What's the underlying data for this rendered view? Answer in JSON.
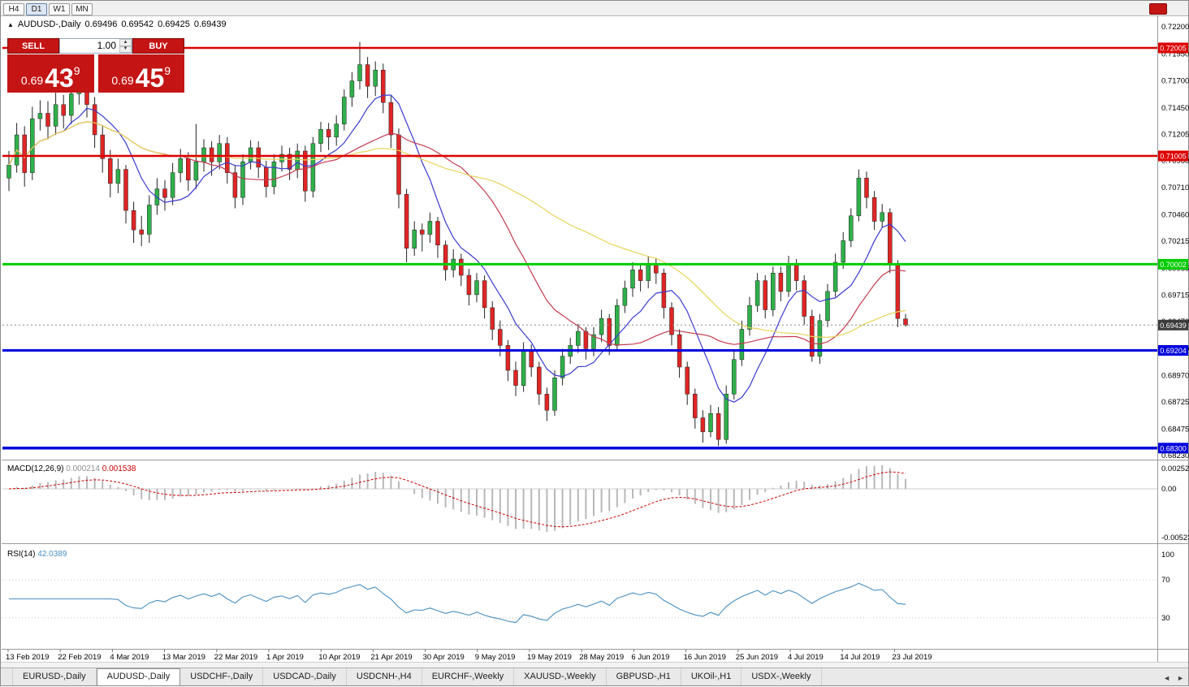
{
  "toolbar": {
    "timeframes": [
      {
        "label": "H4",
        "active": false
      },
      {
        "label": "D1",
        "active": true
      },
      {
        "label": "W1",
        "active": false
      },
      {
        "label": "MN",
        "active": false
      }
    ]
  },
  "chart_header": {
    "symbol_text": "AUDUSD-,Daily",
    "open": "0.69496",
    "high": "0.69542",
    "low": "0.69425",
    "close": "0.69439"
  },
  "trade_panel": {
    "sell_label": "SELL",
    "buy_label": "BUY",
    "volume": "1.00",
    "sell_price": {
      "prefix": "0.69",
      "big": "43",
      "sup": "9"
    },
    "buy_price": {
      "prefix": "0.69",
      "big": "45",
      "sup": "9"
    },
    "panel_color": "#c41414"
  },
  "levels": [
    {
      "price": 0.72005,
      "label": "0.72005",
      "color": "#dd0000",
      "width": 2.5
    },
    {
      "price": 0.71005,
      "label": "0.71005",
      "color": "#dd0000",
      "width": 2.5
    },
    {
      "price": 0.70002,
      "label": "0.70002",
      "color": "#00cc00",
      "width": 3
    },
    {
      "price": 0.69204,
      "label": "0.69204",
      "color": "#0000dd",
      "width": 3
    },
    {
      "price": 0.683,
      "label": "0.68300",
      "color": "#0000dd",
      "width": 3.5
    }
  ],
  "bid_line": {
    "price": 0.69439,
    "label": "0.69439",
    "tag_color": "#3c3c3c"
  },
  "price_axis": {
    "labels": [
      "0.72200",
      "0.71950",
      "0.71700",
      "0.71450",
      "0.71205",
      "0.70960",
      "0.70710",
      "0.70460",
      "0.70215",
      "0.69965",
      "0.69715",
      "0.69470",
      "0.69220",
      "0.68970",
      "0.68725",
      "0.68475",
      "0.68230"
    ]
  },
  "chart_data": {
    "type": "candlestick",
    "title": "AUDUSD-,Daily",
    "symbol": "AUDUSD",
    "timeframe": "Daily",
    "ylim": [
      0.6823,
      0.722
    ],
    "up_color": "#2eb04a",
    "down_color": "#e02525",
    "wick_color": "#222222",
    "date_labels": [
      "13 Feb 2019",
      "22 Feb 2019",
      "4 Mar 2019",
      "13 Mar 2019",
      "22 Mar 2019",
      "1 Apr 2019",
      "10 Apr 2019",
      "21 Apr 2019",
      "30 Apr 2019",
      "9 May 2019",
      "19 May 2019",
      "28 May 2019",
      "6 Jun 2019",
      "16 Jun 2019",
      "25 Jun 2019",
      "4 Jul 2019",
      "14 Jul 2019",
      "23 Jul 2019"
    ],
    "moving_averages": [
      {
        "name": "ma-fast",
        "color": "#3a3ad0"
      },
      {
        "name": "ma-medium",
        "color": "#c43a50"
      },
      {
        "name": "ma-slow",
        "color": "#e8d45a"
      }
    ],
    "indicators": [
      {
        "name": "MACD(12,26,9)",
        "values": [
          0.000214,
          0.001538
        ]
      },
      {
        "name": "RSI(14)",
        "values": [
          42.0389
        ]
      }
    ],
    "candles": [
      [
        0.708,
        0.7105,
        0.7068,
        0.7092
      ],
      [
        0.7092,
        0.7131,
        0.7085,
        0.712
      ],
      [
        0.712,
        0.7128,
        0.7072,
        0.7085
      ],
      [
        0.7085,
        0.7146,
        0.7078,
        0.7135
      ],
      [
        0.7135,
        0.7152,
        0.7124,
        0.714
      ],
      [
        0.714,
        0.7151,
        0.7116,
        0.7128
      ],
      [
        0.7128,
        0.7159,
        0.712,
        0.7148
      ],
      [
        0.7148,
        0.7157,
        0.7126,
        0.7138
      ],
      [
        0.7138,
        0.7168,
        0.713,
        0.7158
      ],
      [
        0.7158,
        0.7175,
        0.7148,
        0.7162
      ],
      [
        0.7162,
        0.7169,
        0.7136,
        0.7148
      ],
      [
        0.7148,
        0.7155,
        0.7108,
        0.712
      ],
      [
        0.712,
        0.7128,
        0.7085,
        0.7098
      ],
      [
        0.7098,
        0.7106,
        0.7062,
        0.7075
      ],
      [
        0.7075,
        0.7098,
        0.7066,
        0.7088
      ],
      [
        0.7088,
        0.7092,
        0.7038,
        0.705
      ],
      [
        0.705,
        0.7058,
        0.702,
        0.7032
      ],
      [
        0.7032,
        0.7045,
        0.7017,
        0.7028
      ],
      [
        0.7028,
        0.7064,
        0.702,
        0.7055
      ],
      [
        0.7055,
        0.708,
        0.7046,
        0.707
      ],
      [
        0.707,
        0.7078,
        0.705,
        0.7062
      ],
      [
        0.7062,
        0.7094,
        0.7055,
        0.7085
      ],
      [
        0.7085,
        0.7107,
        0.7076,
        0.7098
      ],
      [
        0.7098,
        0.7104,
        0.7068,
        0.7078
      ],
      [
        0.7078,
        0.713,
        0.707,
        0.7095
      ],
      [
        0.7095,
        0.7116,
        0.7086,
        0.7108
      ],
      [
        0.7108,
        0.7114,
        0.7082,
        0.7095
      ],
      [
        0.7095,
        0.712,
        0.7088,
        0.7112
      ],
      [
        0.7112,
        0.7118,
        0.7075,
        0.7085
      ],
      [
        0.7085,
        0.7092,
        0.7052,
        0.7062
      ],
      [
        0.7062,
        0.7102,
        0.7055,
        0.7095
      ],
      [
        0.7095,
        0.7115,
        0.7088,
        0.7108
      ],
      [
        0.7108,
        0.7114,
        0.708,
        0.709
      ],
      [
        0.709,
        0.7096,
        0.7062,
        0.7072
      ],
      [
        0.7072,
        0.7102,
        0.7065,
        0.7095
      ],
      [
        0.7095,
        0.711,
        0.7086,
        0.7102
      ],
      [
        0.7102,
        0.7108,
        0.7078,
        0.7088
      ],
      [
        0.7088,
        0.7112,
        0.708,
        0.7105
      ],
      [
        0.7105,
        0.711,
        0.7058,
        0.7068
      ],
      [
        0.7068,
        0.7118,
        0.7062,
        0.7112
      ],
      [
        0.7112,
        0.7132,
        0.7104,
        0.7125
      ],
      [
        0.7125,
        0.7131,
        0.7106,
        0.7118
      ],
      [
        0.7118,
        0.7138,
        0.711,
        0.713
      ],
      [
        0.713,
        0.7162,
        0.7124,
        0.7155
      ],
      [
        0.7155,
        0.7178,
        0.7146,
        0.717
      ],
      [
        0.717,
        0.7206,
        0.7162,
        0.7185
      ],
      [
        0.7185,
        0.7192,
        0.7154,
        0.7165
      ],
      [
        0.7165,
        0.7188,
        0.7156,
        0.718
      ],
      [
        0.718,
        0.7186,
        0.714,
        0.715
      ],
      [
        0.715,
        0.7156,
        0.7108,
        0.712
      ],
      [
        0.712,
        0.7126,
        0.7052,
        0.7065
      ],
      [
        0.7065,
        0.707,
        0.7002,
        0.7015
      ],
      [
        0.7015,
        0.704,
        0.7008,
        0.7032
      ],
      [
        0.7032,
        0.7038,
        0.7012,
        0.7028
      ],
      [
        0.7028,
        0.7048,
        0.702,
        0.704
      ],
      [
        0.704,
        0.7044,
        0.7006,
        0.7018
      ],
      [
        0.7018,
        0.7022,
        0.6985,
        0.6995
      ],
      [
        0.6995,
        0.7014,
        0.6988,
        0.7005
      ],
      [
        0.7005,
        0.701,
        0.698,
        0.699
      ],
      [
        0.699,
        0.6996,
        0.6962,
        0.6972
      ],
      [
        0.6972,
        0.6992,
        0.6965,
        0.6985
      ],
      [
        0.6985,
        0.699,
        0.695,
        0.696
      ],
      [
        0.696,
        0.6966,
        0.693,
        0.694
      ],
      [
        0.694,
        0.6948,
        0.6915,
        0.6925
      ],
      [
        0.6925,
        0.693,
        0.6892,
        0.6902
      ],
      [
        0.6902,
        0.691,
        0.6878,
        0.6888
      ],
      [
        0.6888,
        0.6928,
        0.6882,
        0.692
      ],
      [
        0.692,
        0.6926,
        0.6896,
        0.6905
      ],
      [
        0.6905,
        0.691,
        0.687,
        0.688
      ],
      [
        0.688,
        0.6886,
        0.6855,
        0.6865
      ],
      [
        0.6865,
        0.6902,
        0.686,
        0.6895
      ],
      [
        0.6895,
        0.6922,
        0.6888,
        0.6915
      ],
      [
        0.6915,
        0.6932,
        0.6908,
        0.6925
      ],
      [
        0.6925,
        0.6945,
        0.6918,
        0.6938
      ],
      [
        0.6938,
        0.6942,
        0.6912,
        0.6922
      ],
      [
        0.6922,
        0.6942,
        0.6915,
        0.6935
      ],
      [
        0.6935,
        0.6958,
        0.6928,
        0.695
      ],
      [
        0.695,
        0.6954,
        0.6916,
        0.6925
      ],
      [
        0.6925,
        0.6968,
        0.692,
        0.6962
      ],
      [
        0.6962,
        0.6985,
        0.6955,
        0.6978
      ],
      [
        0.6978,
        0.7002,
        0.697,
        0.6995
      ],
      [
        0.6995,
        0.7,
        0.6975,
        0.6985
      ],
      [
        0.6985,
        0.7008,
        0.6978,
        0.7
      ],
      [
        0.7,
        0.7006,
        0.6982,
        0.6992
      ],
      [
        0.6992,
        0.6996,
        0.695,
        0.696
      ],
      [
        0.696,
        0.6965,
        0.6925,
        0.6935
      ],
      [
        0.6935,
        0.694,
        0.6895,
        0.6905
      ],
      [
        0.6905,
        0.691,
        0.687,
        0.688
      ],
      [
        0.688,
        0.6885,
        0.6848,
        0.6858
      ],
      [
        0.6858,
        0.6865,
        0.6835,
        0.6845
      ],
      [
        0.6845,
        0.687,
        0.684,
        0.6862
      ],
      [
        0.6862,
        0.6868,
        0.6832,
        0.6838
      ],
      [
        0.6838,
        0.6888,
        0.6834,
        0.688
      ],
      [
        0.688,
        0.692,
        0.6875,
        0.6912
      ],
      [
        0.6912,
        0.6948,
        0.6906,
        0.694
      ],
      [
        0.694,
        0.697,
        0.6934,
        0.6962
      ],
      [
        0.6962,
        0.6992,
        0.6956,
        0.6985
      ],
      [
        0.6985,
        0.699,
        0.695,
        0.6958
      ],
      [
        0.6958,
        0.6998,
        0.6952,
        0.6992
      ],
      [
        0.6992,
        0.6998,
        0.6966,
        0.6975
      ],
      [
        0.6975,
        0.7008,
        0.697,
        0.7
      ],
      [
        0.7,
        0.7005,
        0.6976,
        0.6985
      ],
      [
        0.6985,
        0.699,
        0.6944,
        0.6952
      ],
      [
        0.6952,
        0.6958,
        0.691,
        0.6915
      ],
      [
        0.6915,
        0.6954,
        0.6908,
        0.6948
      ],
      [
        0.6948,
        0.6982,
        0.6942,
        0.6975
      ],
      [
        0.6975,
        0.701,
        0.697,
        0.7002
      ],
      [
        0.7002,
        0.703,
        0.6996,
        0.7022
      ],
      [
        0.7022,
        0.7052,
        0.7016,
        0.7045
      ],
      [
        0.7045,
        0.7088,
        0.704,
        0.708
      ],
      [
        0.708,
        0.7086,
        0.7052,
        0.7062
      ],
      [
        0.7062,
        0.7068,
        0.7032,
        0.704
      ],
      [
        0.704,
        0.7056,
        0.7034,
        0.7048
      ],
      [
        0.7048,
        0.7052,
        0.6992,
        0.7
      ],
      [
        0.7,
        0.7004,
        0.6942,
        0.695
      ],
      [
        0.69496,
        0.69542,
        0.69425,
        0.69439
      ]
    ]
  },
  "macd_panel": {
    "title": "MACD(12,26,9)",
    "value_main": "0.000214",
    "value_signal": "0.001538",
    "axis_labels": [
      "0.002522",
      "0.00",
      "-0.005234"
    ],
    "histogram_color": "#b8b8b8",
    "signal_color": "#cc0000"
  },
  "rsi_panel": {
    "title": "RSI(14)",
    "value": "42.0389",
    "axis_labels": [
      "100",
      "70",
      "30"
    ],
    "levels": [
      70,
      30
    ],
    "line_color": "#4a8fc0"
  },
  "tabs": {
    "items": [
      {
        "label": "EURUSD-,Daily",
        "active": false
      },
      {
        "label": "AUDUSD-,Daily",
        "active": true
      },
      {
        "label": "USDCHF-,Daily",
        "active": false
      },
      {
        "label": "USDCAD-,Daily",
        "active": false
      },
      {
        "label": "USDCNH-,H4",
        "active": false
      },
      {
        "label": "EURCHF-,Weekly",
        "active": false
      },
      {
        "label": "XAUUSD-,Weekly",
        "active": false
      },
      {
        "label": "GBPUSD-,H1",
        "active": false
      },
      {
        "label": "UKOil-,H1",
        "active": false
      },
      {
        "label": "USDX-,Weekly",
        "active": false
      }
    ],
    "scroll_left": "◄",
    "scroll_right": "►"
  }
}
